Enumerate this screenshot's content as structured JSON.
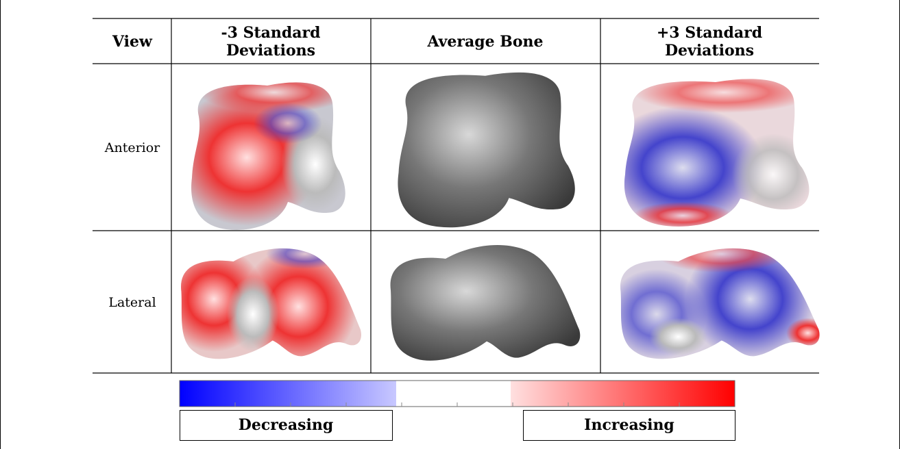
{
  "table": {
    "header": [
      [
        "View"
      ],
      [
        "-3 Standard",
        "Deviations"
      ],
      [
        "Average Bone"
      ],
      [
        "+3 Standard",
        "Deviations"
      ]
    ],
    "rows": [
      {
        "label": "Anterior"
      },
      {
        "label": "Lateral"
      }
    ]
  },
  "legend": {
    "decreasing": "Decreasing",
    "increasing": "Increasing"
  }
}
